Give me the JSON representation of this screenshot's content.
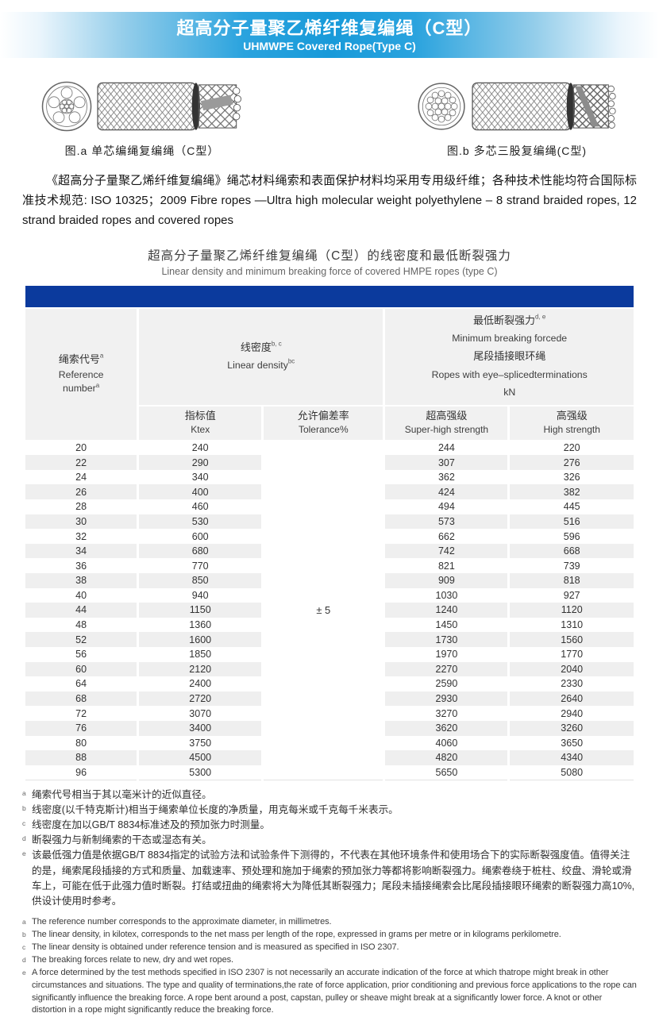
{
  "banner": {
    "title_cn": "超高分子量聚乙烯纤维复编绳（C型）",
    "title_en": "UHMWPE Covered Rope(Type C)",
    "gradient_center_color": "#189ad9"
  },
  "figures": {
    "a_caption": "图.a  单芯编绳复编绳（C型）",
    "b_caption": "图.b  多芯三股复编绳(C型)"
  },
  "intro": {
    "text": "《超高分子量聚乙烯纤维复编绳》绳芯材料绳索和表面保护材料均采用专用级纤维；各种技术性能均符合国际标准技术规范: ISO 10325；2009 Fibre ropes —Ultra high molecular weight polyethylene – 8 strand braided ropes, 12 strand braided ropes and covered ropes"
  },
  "table_title": {
    "cn": "超高分子量聚乙烯纤维复编绳（C型）的线密度和最低断裂强力",
    "en": "Linear density and minimum breaking force of covered HMPE ropes (type C)"
  },
  "table": {
    "accent_bar_color": "#0b3a9d",
    "stripe_color": "#efefef",
    "header": {
      "ref": {
        "cn": "绳索代号",
        "cn_sup": "a",
        "en1": "Reference",
        "en2": "number",
        "en_sup": "a"
      },
      "density": {
        "cn": "线密度",
        "cn_sup": "b, c",
        "en": "Linear density",
        "en_sup": "bc"
      },
      "force": {
        "cn": "最低断裂强力",
        "cn_sup": "d, e",
        "en": "Minimum breaking forcede",
        "cn2": "尾段插接眼环绳",
        "en2": "Ropes with eye–splicedterminations",
        "unit": "kN"
      },
      "sub": {
        "ktex_cn": "指标值",
        "ktex_en": "Ktex",
        "tol_cn": "允许偏差率",
        "tol_en": "Tolerance%",
        "shs_cn": "超高强级",
        "shs_en": "Super-high strength",
        "hs_cn": "高强级",
        "hs_en": "High strength"
      }
    },
    "tolerance_value": "± 5",
    "rows": [
      [
        20,
        240,
        244,
        220
      ],
      [
        22,
        290,
        307,
        276
      ],
      [
        24,
        340,
        362,
        326
      ],
      [
        26,
        400,
        424,
        382
      ],
      [
        28,
        460,
        494,
        445
      ],
      [
        30,
        530,
        573,
        516
      ],
      [
        32,
        600,
        662,
        596
      ],
      [
        34,
        680,
        742,
        668
      ],
      [
        36,
        770,
        821,
        739
      ],
      [
        38,
        850,
        909,
        818
      ],
      [
        40,
        940,
        1030,
        927
      ],
      [
        44,
        1150,
        1240,
        1120
      ],
      [
        48,
        1360,
        1450,
        1310
      ],
      [
        52,
        1600,
        1730,
        1560
      ],
      [
        56,
        1850,
        1970,
        1770
      ],
      [
        60,
        2120,
        2270,
        2040
      ],
      [
        64,
        2400,
        2590,
        2330
      ],
      [
        68,
        2720,
        2930,
        2640
      ],
      [
        72,
        3070,
        3270,
        2940
      ],
      [
        76,
        3400,
        3620,
        3260
      ],
      [
        80,
        3750,
        4060,
        3650
      ],
      [
        88,
        4500,
        4820,
        4340
      ],
      [
        96,
        5300,
        5650,
        5080
      ]
    ]
  },
  "footnotes_cn": [
    {
      "sup": "a",
      "text": "绳索代号相当于其以毫米计的近似直径。"
    },
    {
      "sup": "b",
      "text": "线密度(以千特克斯计)相当于绳索单位长度的净质量，用克每米或千克每千米表示。"
    },
    {
      "sup": "c",
      "text": "线密度在加以GB/T 8834标准述及的预加张力时测量。"
    },
    {
      "sup": "d",
      "text": "断裂强力与新制绳索的干态或湿态有关。"
    },
    {
      "sup": "e",
      "text": "该最低强力值是依据GB/T 8834指定的试验方法和试验条件下测得的，不代表在其他环境条件和使用场合下的实际断裂强度值。值得关注的是，绳索尾段插接的方式和质量、加载速率、预处理和施加于绳索的预加张力等都将影响断裂强力。绳索卷绕于桩柱、绞盘、滑轮或滑车上，可能在低于此强力值时断裂。打结或扭曲的绳索将大为降低其断裂强力；尾段未插接绳索会比尾段插接眼环绳索的断裂强力高10%,供设计使用时参考。"
    }
  ],
  "footnotes_en": [
    {
      "sup": "a",
      "text": "The reference number corresponds to the approximate diameter, in millimetres."
    },
    {
      "sup": "b",
      "text": "The linear density, in kilotex, corresponds to the net mass per length of the rope, expressed in grams per metre or in kilograms perkilometre."
    },
    {
      "sup": "c",
      "text": "The linear density is obtained under reference tension and is measured as specified in ISO 2307."
    },
    {
      "sup": "d",
      "text": "The breaking forces relate to new, dry and wet ropes."
    },
    {
      "sup": "e",
      "text": "A force determined by the test methods specified in ISO 2307 is not necessarily an accurate indication of the force at which thatrope might break in other circumstances and situations. The type and quality of terminations,the rate of force application, prior conditioning and previous force applications to the rope can significantly influence the breaking force. A rope bent around a post, capstan, pulley or sheave might break at a significantly lower force. A knot or other distortion in a rope might significantly reduce the breaking force."
    }
  ]
}
